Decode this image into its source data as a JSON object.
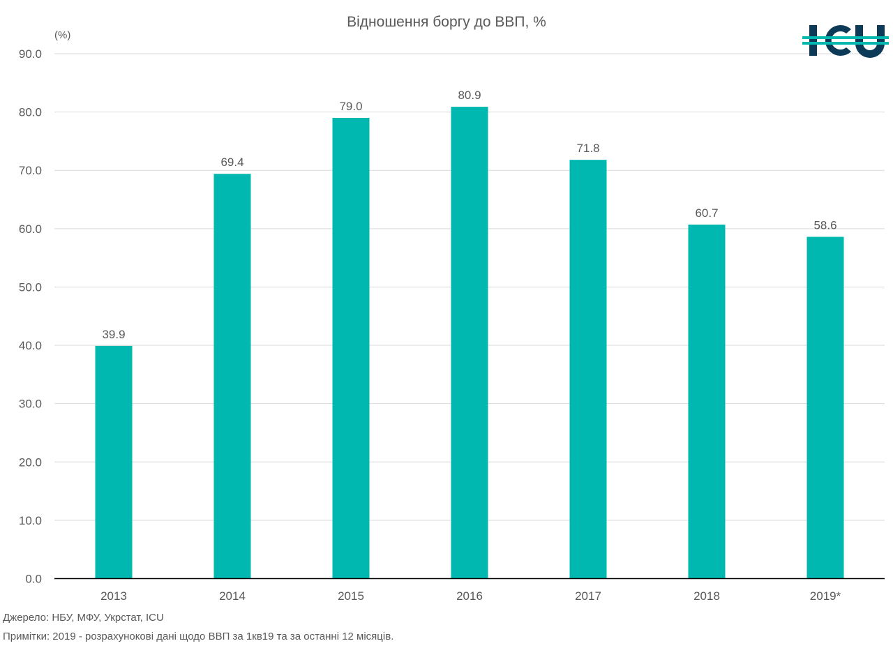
{
  "chart_data": {
    "type": "bar",
    "title": "Відношення боргу до ВВП, %",
    "ylabel": "(%)",
    "categories": [
      "2013",
      "2014",
      "2015",
      "2016",
      "2017",
      "2018",
      "2019*"
    ],
    "values": [
      39.9,
      69.4,
      79.0,
      80.9,
      71.8,
      60.7,
      58.6
    ],
    "data_labels": [
      "39.9",
      "69.4",
      "79.0",
      "80.9",
      "71.8",
      "60.7",
      "58.6"
    ],
    "ylim": [
      0,
      90
    ],
    "yticks": [
      "0.0",
      "10.0",
      "20.0",
      "30.0",
      "40.0",
      "50.0",
      "60.0",
      "70.0",
      "80.0",
      "90.0"
    ],
    "grid": true,
    "legend": "none",
    "bar_color": "#00b8b0"
  },
  "source_note": "Джерело: НБУ, МФУ, Укрстат, ICU",
  "remarks_note": "Примітки: 2019 - розрахунокові дані щодо ВВП за 1кв19 та за останні 12 місяців.",
  "logo": {
    "text": "ICU",
    "colors": {
      "letters": "#0d3b57",
      "stripe": "#00b8b0"
    }
  }
}
